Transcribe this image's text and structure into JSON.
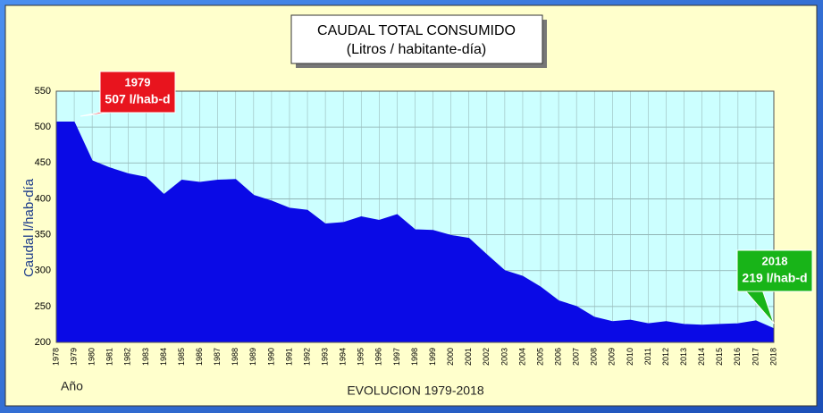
{
  "chart_data": {
    "type": "area",
    "title": "CAUDAL TOTAL CONSUMIDO",
    "subtitle": "(Litros / habitante-día)",
    "y_label": "Caudal l/hab-día",
    "x_label": "EVOLUCION 1979-2018",
    "x_corner_label": "Año",
    "categories": [
      "1978",
      "1979",
      "1980",
      "1981",
      "1982",
      "1983",
      "1984",
      "1985",
      "1986",
      "1987",
      "1988",
      "1989",
      "1990",
      "1991",
      "1992",
      "1993",
      "1994",
      "1995",
      "1996",
      "1997",
      "1998",
      "1999",
      "2000",
      "2001",
      "2002",
      "2003",
      "2004",
      "2005",
      "2006",
      "2007",
      "2008",
      "2009",
      "2010",
      "2011",
      "2012",
      "2013",
      "2014",
      "2015",
      "2016",
      "2017",
      "2018"
    ],
    "values": [
      507,
      507,
      453,
      443,
      435,
      430,
      406,
      426,
      423,
      426,
      427,
      405,
      397,
      387,
      384,
      365,
      367,
      375,
      370,
      378,
      357,
      356,
      349,
      345,
      322,
      300,
      292,
      277,
      258,
      250,
      235,
      229,
      231,
      226,
      229,
      225,
      224,
      225,
      226,
      230,
      219
    ],
    "color": "#0a0ae6",
    "ylim": [
      200,
      550
    ],
    "yticks": [
      200,
      250,
      300,
      350,
      400,
      450,
      500,
      550
    ],
    "grid": true,
    "annotations": [
      {
        "year": "1979",
        "text": "507 l/hab-d",
        "color": "#e8141e"
      },
      {
        "year": "2018",
        "text": "219 l/hab-d",
        "color": "#18b418"
      }
    ]
  }
}
